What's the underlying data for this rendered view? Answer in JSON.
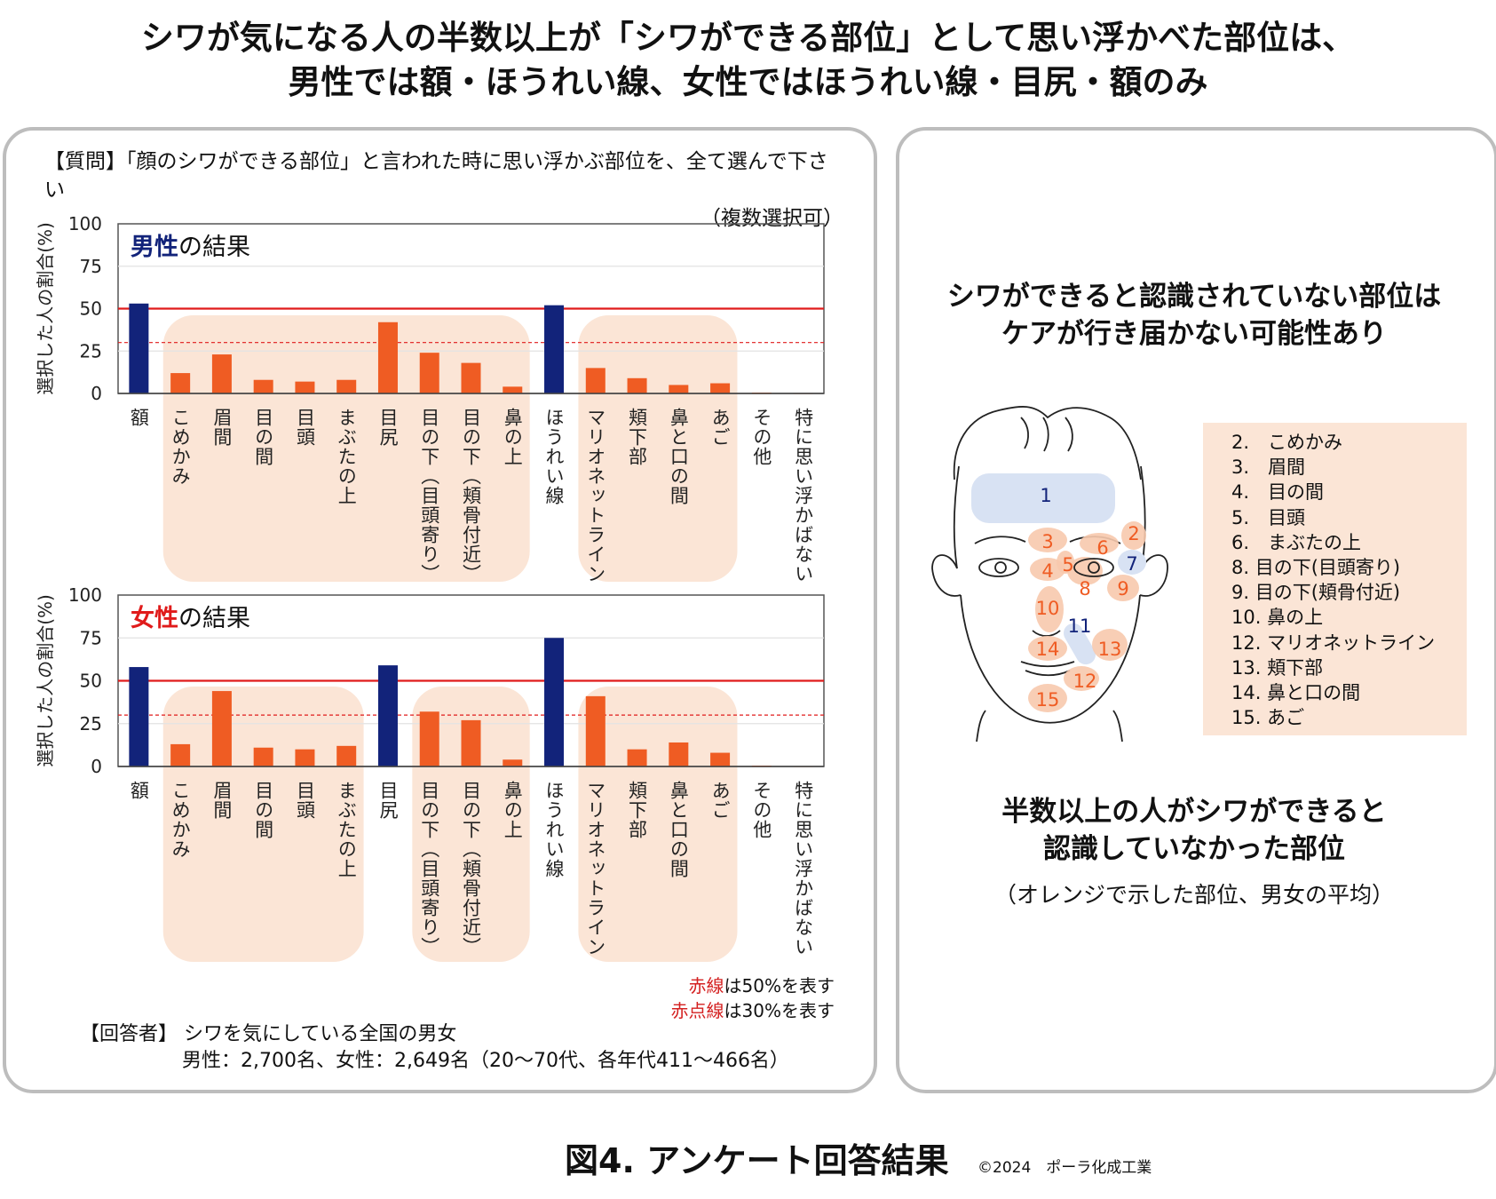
{
  "headline": {
    "line1": "シワが気になる人の半数以上が「シワができる部位」として思い浮かべた部位は、",
    "line2": "男性では額・ほうれい線、女性ではほうれい線・目尻・額のみ"
  },
  "question": {
    "line1": "【質問】「顔のシワができる部位」と言われた時に思い浮かぶ部位を、全て選んで下さい",
    "line2": "（複数選択可）"
  },
  "chart_data": [
    {
      "type": "bar",
      "title_accent": "男性",
      "title_rest": "の結果",
      "ylabel": "選択した人の割合(%)",
      "ylim": [
        0,
        100
      ],
      "yticks": [
        0,
        25,
        50,
        75,
        100
      ],
      "reference_lines": [
        50,
        30
      ],
      "categories": [
        "額",
        "こめかみ",
        "眉間",
        "目の間",
        "目頭",
        "まぶたの上",
        "目尻",
        "目の下（目頭寄り）",
        "目の下（頬骨付近）",
        "鼻の上",
        "ほうれい線",
        "マリオネットライン",
        "頬下部",
        "鼻と口の間",
        "あご",
        "その他",
        "特に思い浮かばない"
      ],
      "values": [
        53,
        12,
        23,
        8,
        7,
        8,
        42,
        24,
        18,
        4,
        52,
        15,
        9,
        5,
        6,
        0.5,
        0
      ],
      "highlight_over_50": [
        true,
        false,
        false,
        false,
        false,
        false,
        false,
        false,
        false,
        false,
        true,
        false,
        false,
        false,
        false,
        false,
        false
      ]
    },
    {
      "type": "bar",
      "title_accent": "女性",
      "title_rest": "の結果",
      "ylabel": "選択した人の割合(%)",
      "ylim": [
        0,
        100
      ],
      "yticks": [
        0,
        25,
        50,
        75,
        100
      ],
      "reference_lines": [
        50,
        30
      ],
      "categories": [
        "額",
        "こめかみ",
        "眉間",
        "目の間",
        "目頭",
        "まぶたの上",
        "目尻",
        "目の下（目頭寄り）",
        "目の下（頬骨付近）",
        "鼻の上",
        "ほうれい線",
        "マリオネットライン",
        "頬下部",
        "鼻と口の間",
        "あご",
        "その他",
        "特に思い浮かばない"
      ],
      "values": [
        58,
        13,
        44,
        11,
        10,
        12,
        59,
        32,
        27,
        4,
        75,
        41,
        10,
        14,
        8,
        0.5,
        0
      ],
      "highlight_over_50": [
        true,
        false,
        false,
        false,
        false,
        false,
        true,
        false,
        false,
        false,
        true,
        false,
        false,
        false,
        false,
        false,
        false
      ]
    }
  ],
  "legend": {
    "red_line_red": "赤線",
    "red_line_rest": "は50%を表す",
    "dotted_red": "赤点線",
    "dotted_rest": "は30%を表す"
  },
  "respondents": {
    "line1": "【回答者】 シワを気にしている全国の男女",
    "line2": "男性：2,700名、女性：2,649名（20～70代、各年代411～466名）"
  },
  "right": {
    "heading_line1": "シワができると認識されていない部位は",
    "heading_line2": "ケアが行き届かない可能性あり",
    "bottom_line1": "半数以上の人がシワができると",
    "bottom_line2": "認識していなかった部位",
    "bottom_sub": "（オレンジで示した部位、男女の平均）",
    "key": [
      "2.　こめかみ",
      "3.　眉間",
      "4.　目の間",
      "5.　目頭",
      "6.　まぶたの上",
      "8. 目の下(目頭寄り)",
      "9. 目の下(頬骨付近)",
      "10. 鼻の上",
      "12. マリオネットライン",
      "13. 頬下部",
      "14. 鼻と口の間",
      "15. あご"
    ],
    "face_labels": [
      "1",
      "2",
      "3",
      "4",
      "5",
      "6",
      "7",
      "8",
      "9",
      "10",
      "11",
      "12",
      "13",
      "14",
      "15"
    ]
  },
  "colors": {
    "navy": "#12237a",
    "orange": "#ef5c23",
    "red": "#e01b1b",
    "shade": "#fbe5d6",
    "blue_zone": "#d8e2f3"
  },
  "footer": {
    "title": "図4. アンケート回答結果",
    "copyright": "©2024　ポーラ化成工業"
  }
}
